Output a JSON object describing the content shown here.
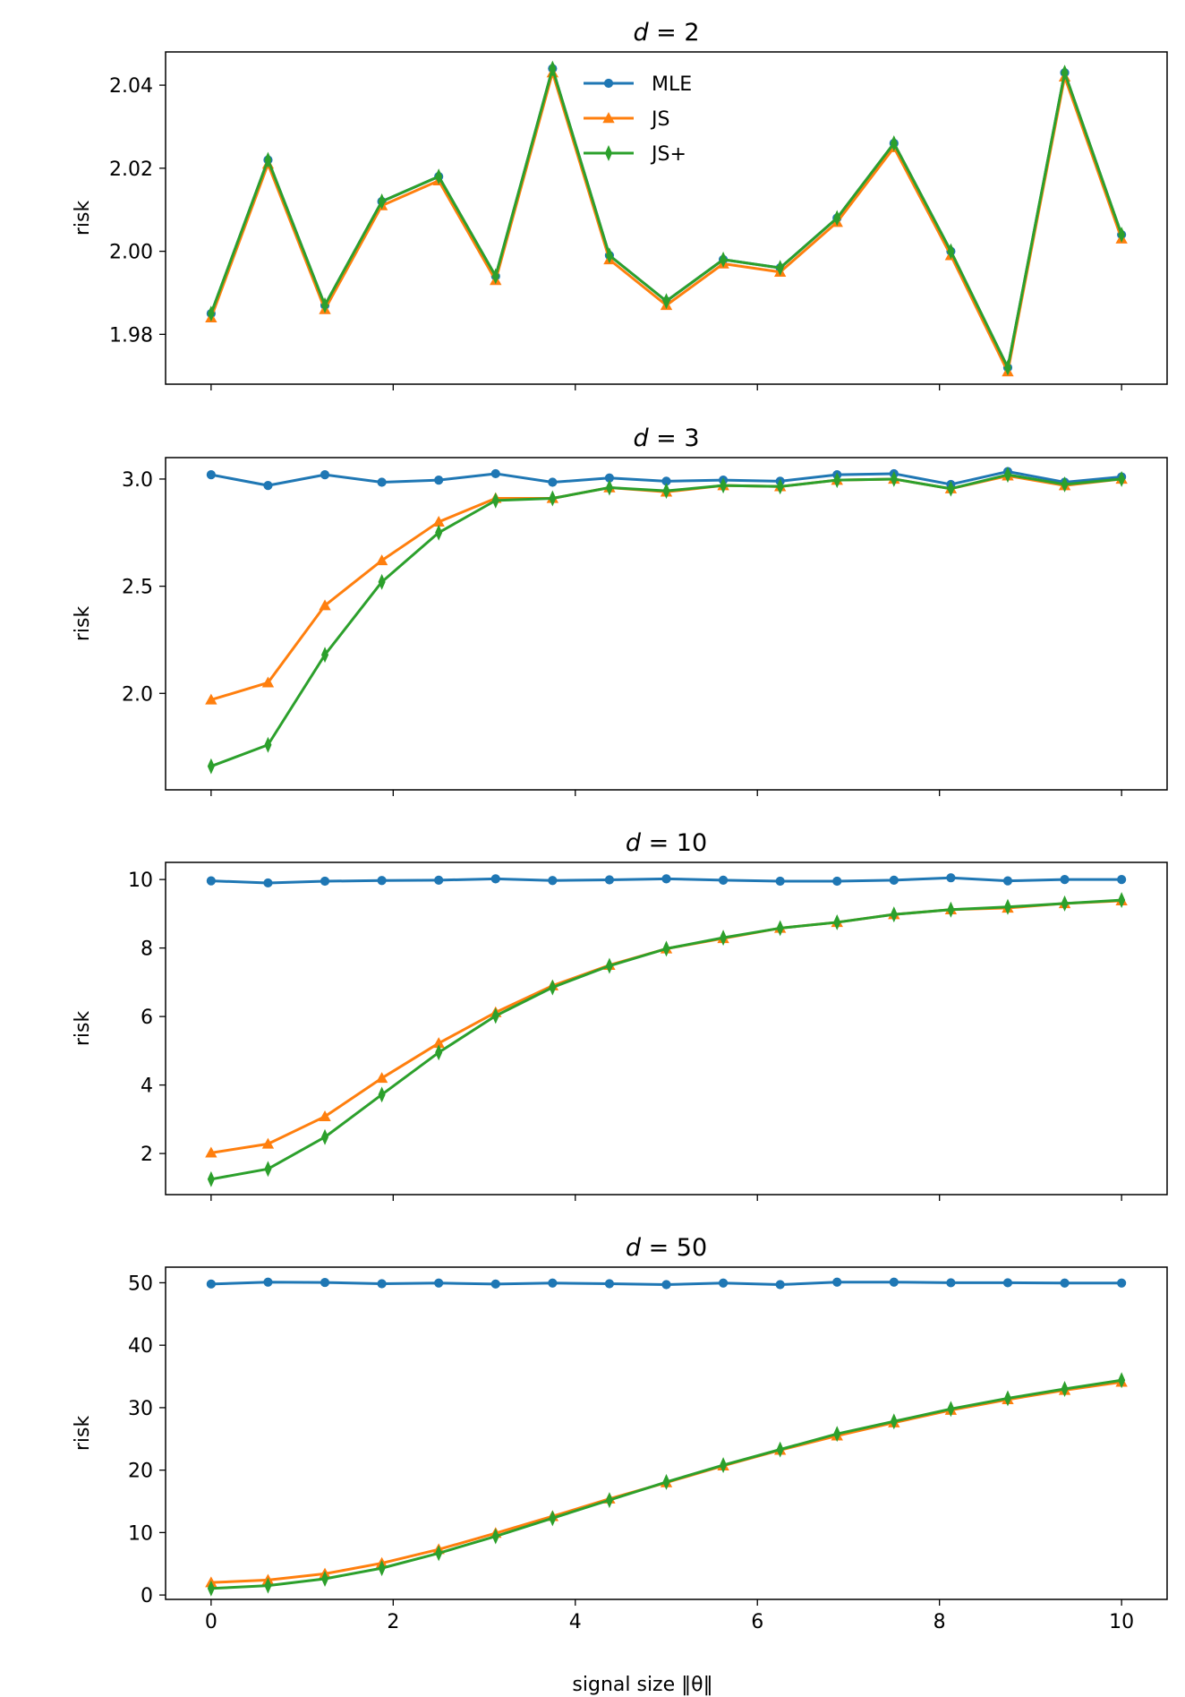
{
  "figure": {
    "xlabel": "signal size ‖θ‖",
    "ylabel": "risk"
  },
  "legend": [
    {
      "label": "MLE",
      "color": "#1f77b4",
      "marker": "circle"
    },
    {
      "label": "JS",
      "color": "#ff7f0e",
      "marker": "triangle"
    },
    {
      "label": "JS+",
      "color": "#2ca02c",
      "marker": "thin-diamond"
    }
  ],
  "chart_data": [
    {
      "type": "line",
      "title_var": "d",
      "title_eq": "= 2",
      "xlabel": "",
      "ylabel": "risk",
      "xlim": [
        -0.5,
        10.5
      ],
      "ylim": [
        1.968,
        2.048
      ],
      "xticks": [
        0,
        2,
        4,
        6,
        8,
        10
      ],
      "yticks": [
        1.98,
        2.0,
        2.02,
        2.04
      ],
      "yticklabels": [
        "1.98",
        "2.00",
        "2.02",
        "2.04"
      ],
      "show_xticklabels": false,
      "legend_position": "top-center",
      "x": [
        0,
        0.625,
        1.25,
        1.875,
        2.5,
        3.125,
        3.75,
        4.375,
        5.0,
        5.625,
        6.25,
        6.875,
        7.5,
        8.125,
        8.75,
        9.375,
        10.0
      ],
      "series": [
        {
          "name": "MLE",
          "values": [
            1.985,
            2.022,
            1.987,
            2.012,
            2.018,
            1.994,
            2.044,
            1.999,
            1.988,
            1.998,
            1.996,
            2.008,
            2.026,
            2.0,
            1.972,
            2.043,
            2.004
          ]
        },
        {
          "name": "JS",
          "values": [
            1.984,
            2.021,
            1.986,
            2.011,
            2.017,
            1.993,
            2.043,
            1.998,
            1.987,
            1.997,
            1.995,
            2.007,
            2.025,
            1.999,
            1.971,
            2.042,
            2.003
          ]
        },
        {
          "name": "JS+",
          "values": [
            1.985,
            2.022,
            1.987,
            2.012,
            2.018,
            1.994,
            2.044,
            1.999,
            1.988,
            1.998,
            1.996,
            2.008,
            2.026,
            2.0,
            1.972,
            2.043,
            2.004
          ]
        }
      ]
    },
    {
      "type": "line",
      "title_var": "d",
      "title_eq": "= 3",
      "xlabel": "",
      "ylabel": "risk",
      "xlim": [
        -0.5,
        10.5
      ],
      "ylim": [
        1.55,
        3.1
      ],
      "xticks": [
        0,
        2,
        4,
        6,
        8,
        10
      ],
      "yticks": [
        2.0,
        2.5,
        3.0
      ],
      "yticklabels": [
        "2.0",
        "2.5",
        "3.0"
      ],
      "show_xticklabels": false,
      "x": [
        0,
        0.625,
        1.25,
        1.875,
        2.5,
        3.125,
        3.75,
        4.375,
        5.0,
        5.625,
        6.25,
        6.875,
        7.5,
        8.125,
        8.75,
        9.375,
        10.0
      ],
      "series": [
        {
          "name": "MLE",
          "values": [
            3.02,
            2.97,
            3.02,
            2.985,
            2.995,
            3.025,
            2.985,
            3.005,
            2.99,
            2.995,
            2.99,
            3.02,
            3.025,
            2.975,
            3.035,
            2.985,
            3.01
          ]
        },
        {
          "name": "JS",
          "values": [
            1.97,
            2.05,
            2.41,
            2.62,
            2.8,
            2.91,
            2.91,
            2.96,
            2.94,
            2.97,
            2.965,
            2.995,
            3.0,
            2.955,
            3.015,
            2.97,
            3.0
          ]
        },
        {
          "name": "JS+",
          "values": [
            1.66,
            1.76,
            2.18,
            2.52,
            2.75,
            2.9,
            2.91,
            2.96,
            2.945,
            2.97,
            2.965,
            2.995,
            3.0,
            2.955,
            3.02,
            2.975,
            3.0
          ]
        }
      ]
    },
    {
      "type": "line",
      "title_var": "d",
      "title_eq": "= 10",
      "xlabel": "",
      "ylabel": "risk",
      "xlim": [
        -0.5,
        10.5
      ],
      "ylim": [
        0.8,
        10.5
      ],
      "xticks": [
        0,
        2,
        4,
        6,
        8,
        10
      ],
      "yticks": [
        2,
        4,
        6,
        8,
        10
      ],
      "yticklabels": [
        "2",
        "4",
        "6",
        "8",
        "10"
      ],
      "show_xticklabels": false,
      "x": [
        0,
        0.625,
        1.25,
        1.875,
        2.5,
        3.125,
        3.75,
        4.375,
        5.0,
        5.625,
        6.25,
        6.875,
        7.5,
        8.125,
        8.75,
        9.375,
        10.0
      ],
      "series": [
        {
          "name": "MLE",
          "values": [
            9.96,
            9.9,
            9.95,
            9.97,
            9.98,
            10.02,
            9.97,
            9.99,
            10.02,
            9.98,
            9.95,
            9.95,
            9.98,
            10.05,
            9.96,
            10.0,
            10.0
          ]
        },
        {
          "name": "JS",
          "values": [
            2.02,
            2.28,
            3.08,
            4.2,
            5.22,
            6.12,
            6.9,
            7.5,
            7.98,
            8.28,
            8.58,
            8.75,
            8.98,
            9.12,
            9.17,
            9.3,
            9.38
          ]
        },
        {
          "name": "JS+",
          "values": [
            1.25,
            1.55,
            2.48,
            3.72,
            4.95,
            6.02,
            6.85,
            7.48,
            7.98,
            8.3,
            8.58,
            8.75,
            8.98,
            9.12,
            9.2,
            9.3,
            9.4
          ]
        }
      ]
    },
    {
      "type": "line",
      "title_var": "d",
      "title_eq": "= 50",
      "xlabel": "signal size ‖θ‖",
      "ylabel": "risk",
      "xlim": [
        -0.5,
        10.5
      ],
      "ylim": [
        -0.7,
        52.5
      ],
      "xticks": [
        0,
        2,
        4,
        6,
        8,
        10
      ],
      "yticks": [
        0,
        10,
        20,
        30,
        40,
        50
      ],
      "yticklabels": [
        "0",
        "10",
        "20",
        "30",
        "40",
        "50"
      ],
      "xticklabels": [
        "0",
        "2",
        "4",
        "6",
        "8",
        "10"
      ],
      "show_xticklabels": true,
      "x": [
        0,
        0.625,
        1.25,
        1.875,
        2.5,
        3.125,
        3.75,
        4.375,
        5.0,
        5.625,
        6.25,
        6.875,
        7.5,
        8.125,
        8.75,
        9.375,
        10.0
      ],
      "series": [
        {
          "name": "MLE",
          "values": [
            49.8,
            50.1,
            50.05,
            49.85,
            49.95,
            49.8,
            49.95,
            49.85,
            49.7,
            49.95,
            49.7,
            50.1,
            50.1,
            50.0,
            50.0,
            49.95,
            49.95
          ]
        },
        {
          "name": "JS",
          "values": [
            2.0,
            2.4,
            3.4,
            5.1,
            7.3,
            9.9,
            12.6,
            15.4,
            18.0,
            20.7,
            23.2,
            25.5,
            27.6,
            29.6,
            31.3,
            32.8,
            34.1
          ]
        },
        {
          "name": "JS+",
          "values": [
            1.05,
            1.5,
            2.6,
            4.3,
            6.7,
            9.4,
            12.3,
            15.2,
            18.1,
            20.8,
            23.3,
            25.8,
            27.8,
            29.8,
            31.5,
            33.0,
            34.4
          ]
        }
      ]
    }
  ]
}
